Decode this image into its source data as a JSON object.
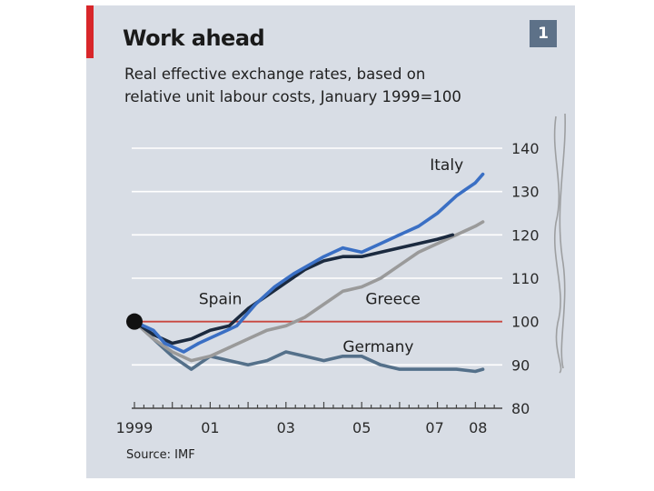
{
  "header": {
    "title": "Work ahead",
    "subtitle_line1": "Real effective exchange rates, based on",
    "subtitle_line2": "relative unit labour costs, January 1999=100",
    "chart_number": "1"
  },
  "footer": {
    "source": "Source: IMF"
  },
  "colors": {
    "background": "#d8dde5",
    "accent_red": "#d8262a",
    "italy": "#3a6fc4",
    "spain": "#1b2a3f",
    "greece": "#9a9a9a",
    "germany": "#54708a",
    "baseline": "#c9473f"
  },
  "chart_data": {
    "type": "line",
    "ylim": [
      80,
      140
    ],
    "yticks": [
      80,
      90,
      100,
      110,
      120,
      130,
      140
    ],
    "xlim": [
      1999.0,
      2008.5
    ],
    "xtick_labels": [
      {
        "x": 1999,
        "label": "1999"
      },
      {
        "x": 2001,
        "label": "01"
      },
      {
        "x": 2003,
        "label": "03"
      },
      {
        "x": 2005,
        "label": "05"
      },
      {
        "x": 2007,
        "label": "07"
      },
      {
        "x": 2008,
        "label": "08"
      }
    ],
    "base_point": {
      "x": 1999.0,
      "y": 100
    },
    "reference_line": 100,
    "series": [
      {
        "name": "Italy",
        "label": "Italy",
        "color": "#3a6fc4",
        "label_pos": [
          2006.8,
          135
        ],
        "points": [
          [
            1999,
            100
          ],
          [
            1999.5,
            98
          ],
          [
            1999.8,
            95
          ],
          [
            2000.3,
            93
          ],
          [
            2000.7,
            95
          ],
          [
            2001.2,
            97
          ],
          [
            2001.7,
            99
          ],
          [
            2002.2,
            104
          ],
          [
            2002.7,
            108
          ],
          [
            2003.2,
            111
          ],
          [
            2003.6,
            113
          ],
          [
            2004.0,
            115
          ],
          [
            2004.5,
            117
          ],
          [
            2005.0,
            116
          ],
          [
            2005.5,
            118
          ],
          [
            2006.0,
            120
          ],
          [
            2006.5,
            122
          ],
          [
            2007.0,
            125
          ],
          [
            2007.5,
            129
          ],
          [
            2008.0,
            132
          ],
          [
            2008.2,
            134
          ]
        ]
      },
      {
        "name": "Spain",
        "label": "Spain",
        "color": "#1b2a3f",
        "label_pos": [
          2000.7,
          104
        ],
        "points": [
          [
            1999,
            100
          ],
          [
            1999.5,
            97
          ],
          [
            2000.0,
            95
          ],
          [
            2000.5,
            96
          ],
          [
            2001.0,
            98
          ],
          [
            2001.5,
            99
          ],
          [
            2002.0,
            103
          ],
          [
            2002.5,
            106
          ],
          [
            2003.0,
            109
          ],
          [
            2003.5,
            112
          ],
          [
            2004.0,
            114
          ],
          [
            2004.5,
            115
          ],
          [
            2005.0,
            115
          ],
          [
            2005.5,
            116
          ],
          [
            2006.0,
            117
          ],
          [
            2006.5,
            118
          ],
          [
            2007.0,
            119
          ],
          [
            2007.4,
            120
          ]
        ]
      },
      {
        "name": "Greece",
        "label": "Greece",
        "color": "#9a9a9a",
        "label_pos": [
          2005.1,
          104
        ],
        "points": [
          [
            1999,
            100
          ],
          [
            1999.5,
            96
          ],
          [
            2000.0,
            93
          ],
          [
            2000.5,
            91
          ],
          [
            2001.0,
            92
          ],
          [
            2001.5,
            94
          ],
          [
            2002.0,
            96
          ],
          [
            2002.5,
            98
          ],
          [
            2003.0,
            99
          ],
          [
            2003.5,
            101
          ],
          [
            2004.0,
            104
          ],
          [
            2004.5,
            107
          ],
          [
            2005.0,
            108
          ],
          [
            2005.5,
            110
          ],
          [
            2006.0,
            113
          ],
          [
            2006.5,
            116
          ],
          [
            2007.0,
            118
          ],
          [
            2007.5,
            120
          ],
          [
            2008.0,
            122
          ],
          [
            2008.2,
            123
          ]
        ]
      },
      {
        "name": "Germany",
        "label": "Germany",
        "color": "#54708a",
        "label_pos": [
          2004.5,
          93
        ],
        "points": [
          [
            1999,
            100
          ],
          [
            1999.5,
            96
          ],
          [
            2000.0,
            92
          ],
          [
            2000.5,
            89
          ],
          [
            2001.0,
            92
          ],
          [
            2001.5,
            91
          ],
          [
            2002.0,
            90
          ],
          [
            2002.5,
            91
          ],
          [
            2003.0,
            93
          ],
          [
            2003.5,
            92
          ],
          [
            2004.0,
            91
          ],
          [
            2004.5,
            92
          ],
          [
            2005.0,
            92
          ],
          [
            2005.5,
            90
          ],
          [
            2006.0,
            89
          ],
          [
            2006.5,
            89
          ],
          [
            2007.0,
            89
          ],
          [
            2007.5,
            89
          ],
          [
            2008.0,
            88.5
          ],
          [
            2008.2,
            89
          ]
        ]
      }
    ]
  }
}
